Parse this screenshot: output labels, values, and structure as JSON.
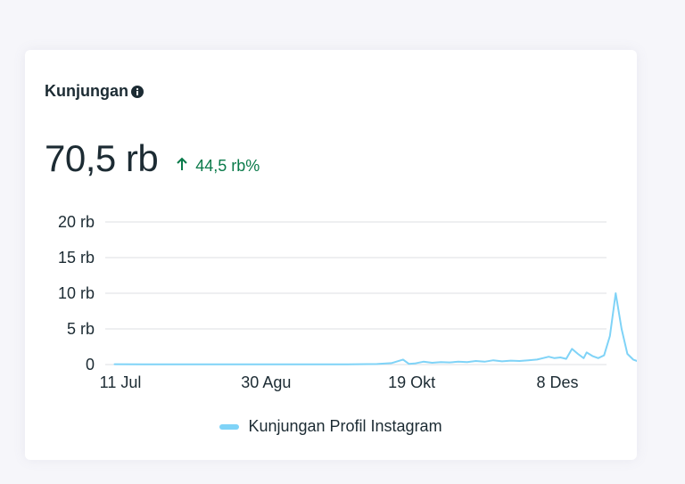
{
  "card": {
    "title": "Kunjungan",
    "info_icon": "info-icon",
    "value": "70,5 rb",
    "change": "44,5 rb%",
    "change_icon": "arrow-up-icon",
    "change_color": "#0a7a4a"
  },
  "chart_data": {
    "type": "line",
    "title": "",
    "xlabel": "",
    "ylabel": "",
    "x_tick_labels": [
      "11 Jul",
      "30 Agu",
      "19 Okt",
      "8 Des"
    ],
    "y_tick_labels": [
      "0",
      "5 rb",
      "10 rb",
      "15 rb",
      "20 rb"
    ],
    "y_tick_values": [
      0,
      5000,
      10000,
      15000,
      20000
    ],
    "ylim": [
      0,
      20000
    ],
    "grid": true,
    "legend_position": "bottom-center",
    "series": [
      {
        "name": "Kunjungan Profil Instagram",
        "color": "#7fd3f7",
        "x": [
          "2023-07-09",
          "2023-07-19",
          "2023-07-29",
          "2023-08-08",
          "2023-08-18",
          "2023-08-28",
          "2023-09-07",
          "2023-09-17",
          "2023-09-27",
          "2023-10-07",
          "2023-10-12",
          "2023-10-16",
          "2023-10-18",
          "2023-10-20",
          "2023-10-23",
          "2023-10-26",
          "2023-10-29",
          "2023-11-01",
          "2023-11-04",
          "2023-11-07",
          "2023-11-10",
          "2023-11-13",
          "2023-11-16",
          "2023-11-19",
          "2023-11-22",
          "2023-11-25",
          "2023-11-28",
          "2023-12-01",
          "2023-12-03",
          "2023-12-05",
          "2023-12-07",
          "2023-12-09",
          "2023-12-11",
          "2023-12-13",
          "2023-12-15",
          "2023-12-17",
          "2023-12-18",
          "2023-12-20",
          "2023-12-22",
          "2023-12-24",
          "2023-12-26",
          "2023-12-28",
          "2023-12-30",
          "2024-01-01",
          "2024-01-03",
          "2024-01-05"
        ],
        "values": [
          50,
          40,
          30,
          30,
          30,
          30,
          30,
          30,
          30,
          80,
          200,
          700,
          100,
          150,
          400,
          250,
          350,
          300,
          400,
          350,
          500,
          400,
          600,
          450,
          550,
          500,
          600,
          700,
          900,
          1100,
          900,
          1000,
          800,
          2200,
          1500,
          900,
          1700,
          1200,
          900,
          1300,
          4000,
          10000,
          5000,
          1500,
          700,
          400
        ]
      }
    ]
  }
}
